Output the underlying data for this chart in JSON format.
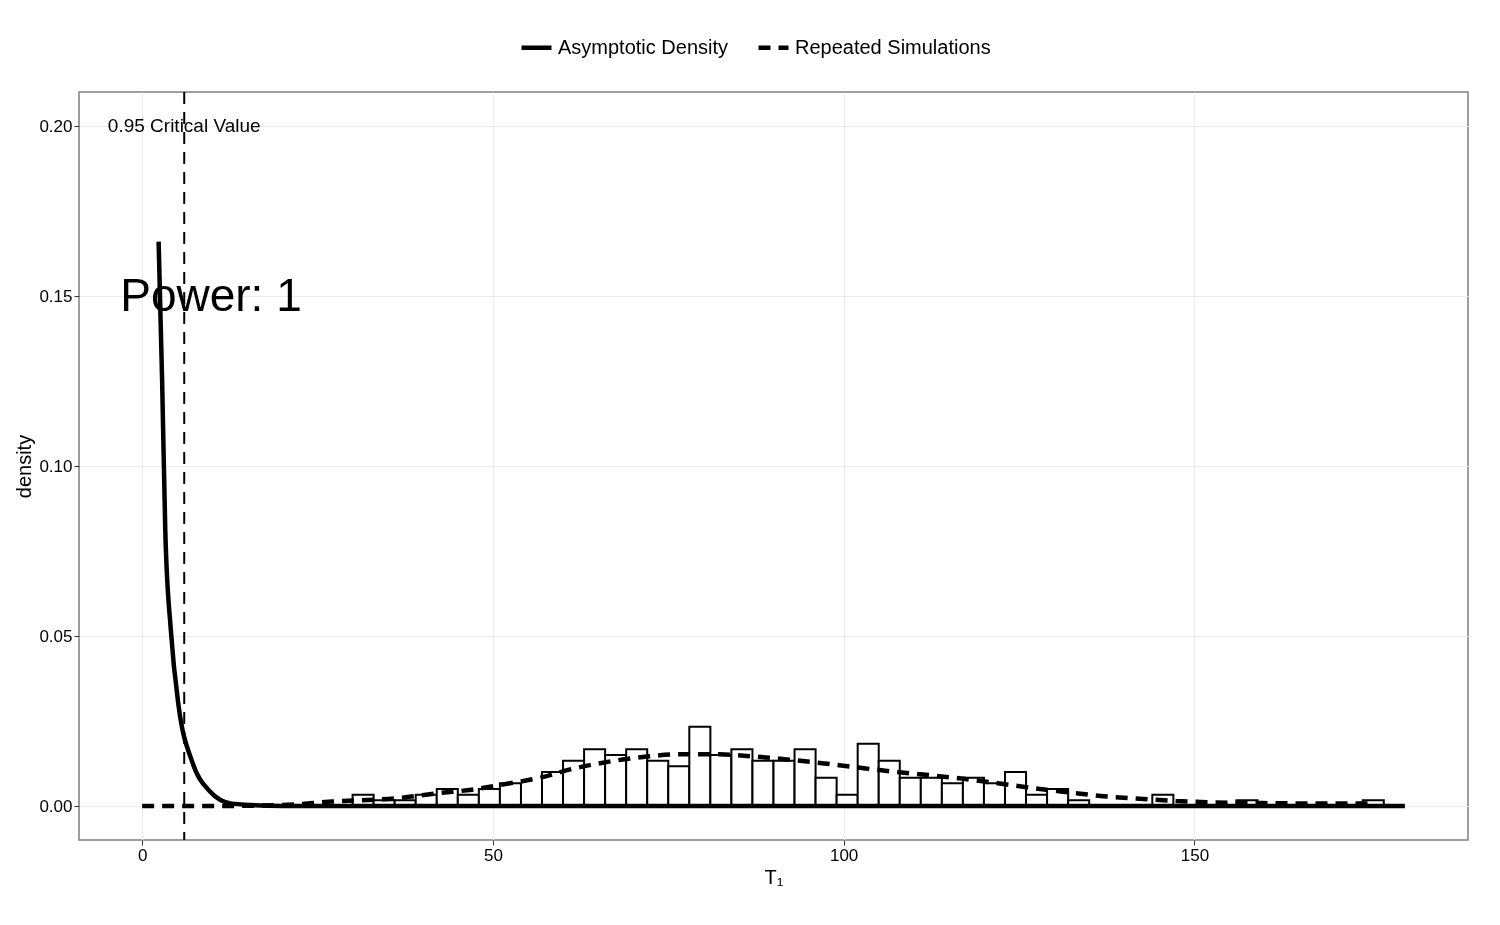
{
  "chart_data": {
    "type": "histogram",
    "xlabel": "T₁",
    "ylabel": "density",
    "xlim": [
      -9,
      189
    ],
    "ylim": [
      -0.01,
      0.21
    ],
    "xticks": [
      0,
      50,
      100,
      150
    ],
    "yticks": [
      {
        "value": 0,
        "label": "0.00"
      },
      {
        "value": 0.05,
        "label": "0.05"
      },
      {
        "value": 0.1,
        "label": "0.10"
      },
      {
        "value": 0.15,
        "label": "0.15"
      },
      {
        "value": 0.2,
        "label": "0.20"
      }
    ],
    "grid": true,
    "legend": "top",
    "annotations": [
      "Power: 1"
    ],
    "ref_lines": [
      {
        "axis": "x",
        "value": 6.0,
        "label": "0.95 Critical Value",
        "line_style": "dashed",
        "color": "#000000"
      }
    ],
    "series": [
      {
        "color": "#ffffff",
        "bins": [
          30,
          33,
          36,
          39,
          42,
          45,
          48,
          51,
          54,
          57,
          60,
          63,
          66,
          69,
          72,
          75,
          78,
          81,
          84,
          87,
          90,
          93,
          96,
          99,
          102,
          105,
          108,
          111,
          114,
          117,
          120,
          123,
          126,
          129,
          132,
          135,
          138,
          141,
          144,
          147,
          150,
          153,
          156,
          159,
          162,
          165,
          168,
          171,
          174,
          177
        ],
        "values": [
          0.0033,
          0.0017,
          0.0017,
          0.0033,
          0.005,
          0.0033,
          0.005,
          0.0067,
          0,
          0.01,
          0.0133,
          0.0167,
          0.015,
          0.0167,
          0.0133,
          0.0117,
          0.0233,
          0.015,
          0.0167,
          0.0133,
          0.0133,
          0.0167,
          0.0083,
          0.0033,
          0.0183,
          0.0133,
          0.0083,
          0.0083,
          0.0067,
          0.0083,
          0.0067,
          0.01,
          0.0033,
          0.005,
          0.0017,
          0,
          0,
          0,
          0.0033,
          0,
          0,
          0,
          0.0017,
          0,
          0,
          0,
          0,
          0,
          0.0017
        ]
      },
      {
        "type": "line",
        "name": "Asymptotic Density",
        "color": "#000000",
        "line_style": "solid",
        "x": [
          2.35,
          2.85,
          3.3,
          4.1,
          5.2,
          7.1,
          9.6,
          12.8,
          20,
          40,
          80,
          120,
          160,
          180
        ],
        "values": [
          0.166,
          0.125,
          0.081,
          0.0515,
          0.0294,
          0.0132,
          0.0044,
          0.0007,
          0,
          0,
          0,
          0,
          0,
          0
        ]
      },
      {
        "type": "line",
        "name": "Repeated Simulations",
        "color": "#000000",
        "line_style": "dashed",
        "x": [
          0,
          10,
          20,
          27,
          36.8,
          42.3,
          47,
          52.2,
          56.7,
          61.7,
          67,
          71.7,
          76.6,
          82.2,
          86.9,
          91.9,
          96.9,
          102.1,
          107.1,
          112.1,
          117.1,
          122,
          127.2,
          132.2,
          137,
          142.2,
          147.4,
          152.4,
          162.4,
          172.8,
          175.2
        ],
        "values": [
          0,
          0,
          0.0003,
          0.0013,
          0.0024,
          0.0038,
          0.0048,
          0.0066,
          0.0083,
          0.0111,
          0.0132,
          0.0145,
          0.0152,
          0.0152,
          0.0146,
          0.0137,
          0.0126,
          0.0113,
          0.0101,
          0.0091,
          0.008,
          0.0067,
          0.0052,
          0.004,
          0.0029,
          0.0021,
          0.0015,
          0.0011,
          0.0008,
          0.0007,
          0.0007
        ]
      }
    ]
  }
}
